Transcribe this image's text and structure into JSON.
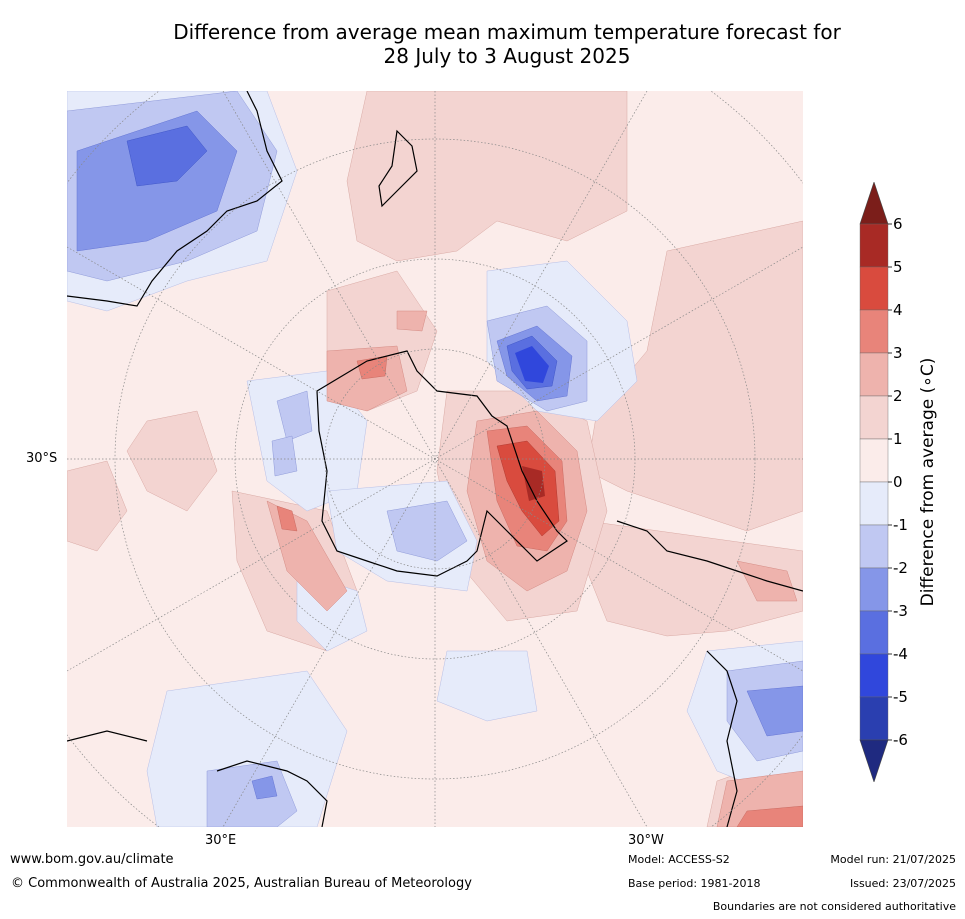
{
  "title_line1": "Difference from average mean maximum temperature forecast for",
  "title_line2": "28 July to 3 August 2025",
  "axis_labels": {
    "lat_30s": "30°S",
    "lon_30e": "30°E",
    "lon_30w": "30°W"
  },
  "colorbar": {
    "title": "Difference from average (∘C)",
    "ticks": [
      "6",
      "5",
      "4",
      "3",
      "2",
      "1",
      "0",
      "-1",
      "-2",
      "-3",
      "-4",
      "-5",
      "-6"
    ],
    "colors": [
      "#7b1e1a",
      "#a82a25",
      "#d94b3e",
      "#e8847a",
      "#eeb3ad",
      "#f3d4d1",
      "#fbecea",
      "#e6ebfa",
      "#c0c8f2",
      "#8596e8",
      "#5a6fe0",
      "#3047dc",
      "#2a3fb0",
      "#1f2a80"
    ]
  },
  "footer": {
    "url": "www.bom.gov.au/climate",
    "copyright": "© Commonwealth of Australia 2025, Australian Bureau of Meteorology",
    "model": "Model: ACCESS-S2",
    "base_period": "Base period: 1981-2018",
    "model_run": "Model run: 21/07/2025",
    "issued": "Issued: 23/07/2025",
    "disclaimer": "Boundaries are not considered authoritative"
  }
}
